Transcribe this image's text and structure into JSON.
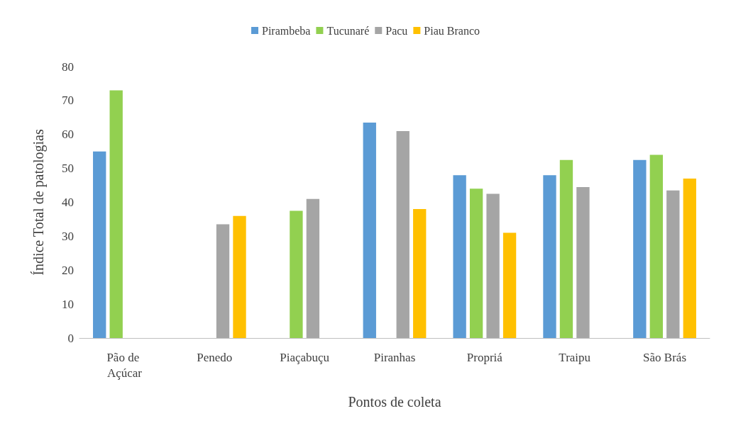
{
  "chart_data": {
    "type": "bar",
    "xlabel": "Pontos de coleta",
    "ylabel": "Índice Total de patologias",
    "categories": [
      "Pão de Açúcar",
      "Penedo",
      "Piaçabuçu",
      "Piranhas",
      "Propriá",
      "Traipu",
      "São Brás"
    ],
    "series": [
      {
        "name": "Pirambeba",
        "color": "#5b9bd5",
        "values": [
          55,
          null,
          null,
          63.5,
          48,
          48,
          52.5
        ]
      },
      {
        "name": "Tucunaré",
        "color": "#92d050",
        "values": [
          73,
          null,
          37.5,
          null,
          44,
          52.5,
          54
        ]
      },
      {
        "name": "Pacu",
        "color": "#a5a5a5",
        "values": [
          null,
          33.5,
          41,
          61,
          42.5,
          44.5,
          43.5
        ]
      },
      {
        "name": "Piau Branco",
        "color": "#ffc000",
        "values": [
          null,
          36,
          null,
          38,
          31,
          null,
          47
        ]
      }
    ],
    "ylim": [
      0,
      80
    ],
    "yticks": [
      0,
      10,
      20,
      30,
      40,
      50,
      60,
      70,
      80
    ],
    "grid": false,
    "legend": "top"
  }
}
